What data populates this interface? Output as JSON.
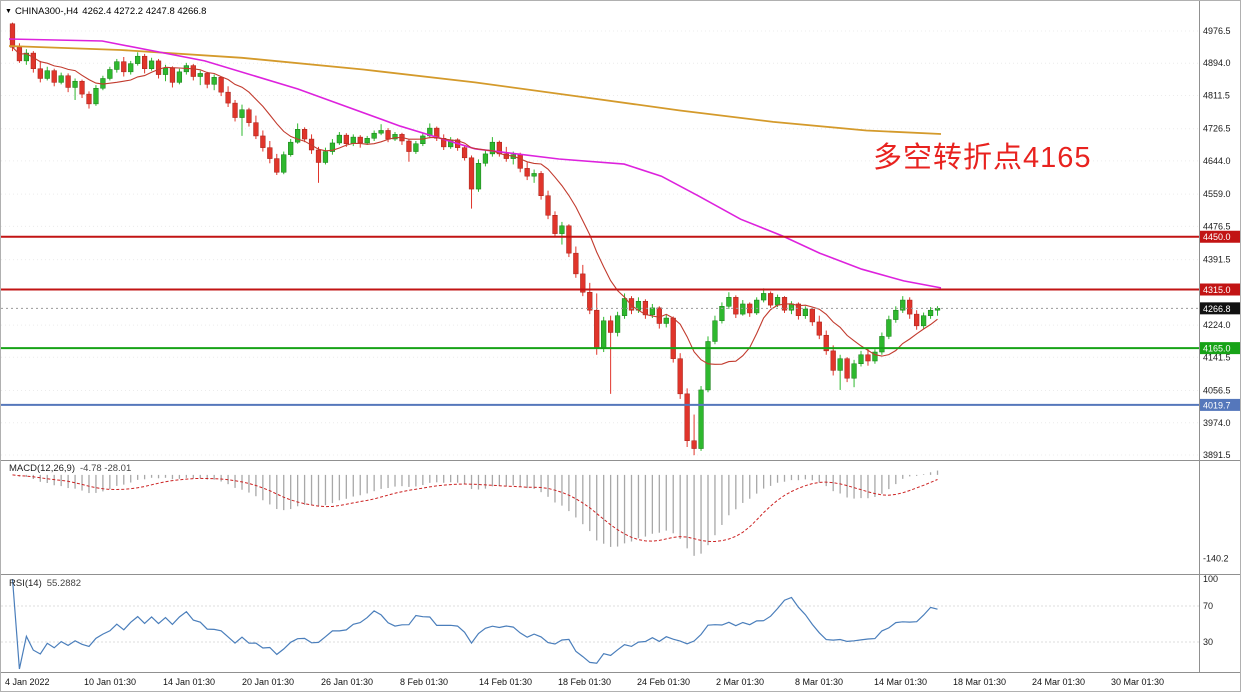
{
  "header": {
    "symbol": "CHINA300-,H4",
    "ohlc": "4262.4 4272.2 4247.8 4266.8"
  },
  "annotation": {
    "text": "多空转折点4165",
    "color": "#e8221f"
  },
  "indicators": {
    "macd": {
      "label": "MACD(12,26,9)",
      "values": "-4.78 -28.01",
      "axis_min_label": "-140.2"
    },
    "rsi": {
      "label": "RSI(14)",
      "value": "55.2882",
      "ticks": [
        "100",
        "70",
        "30"
      ]
    }
  },
  "price_axis": {
    "ticks": [
      "4976.5",
      "4894.0",
      "4811.5",
      "4726.5",
      "4644.0",
      "4559.0",
      "4476.5",
      "4391.5",
      "4224.0",
      "4141.5",
      "4056.5",
      "3974.0",
      "3891.5"
    ]
  },
  "time_axis": {
    "labels": [
      "4 Jan 2022",
      "10 Jan 01:30",
      "14 Jan 01:30",
      "20 Jan 01:30",
      "26 Jan 01:30",
      "8 Feb 01:30",
      "14 Feb 01:30",
      "18 Feb 01:30",
      "24 Feb 01:30",
      "2 Mar 01:30",
      "8 Mar 01:30",
      "14 Mar 01:30",
      "18 Mar 01:30",
      "24 Mar 01:30",
      "30 Mar 01:30"
    ]
  },
  "chart_data": {
    "type": "candlestick",
    "symbol": "CHINA300-",
    "timeframe": "H4",
    "price_range": [
      3891.5,
      4976.5
    ],
    "current_price": 4266.8,
    "current_price_label": "4266.8",
    "colors": {
      "up": "#2eb82e",
      "up_border": "#157a15",
      "down": "#e0352b",
      "down_border": "#a31f16",
      "ma_fast": "#c23b2e",
      "ma_mid": "#dd22dd",
      "ma_slow": "#d49a2b",
      "macd_hist": "#a8a8a8",
      "macd_signal": "#cc2222",
      "rsi": "#4a7ebb",
      "grid": "#ececec",
      "current": "#9a9a9a"
    },
    "levels": [
      {
        "price": 4450.0,
        "label": "4450.0",
        "color": "#c21414"
      },
      {
        "price": 4315.0,
        "label": "4315.0",
        "color": "#c21414"
      },
      {
        "price": 4165.0,
        "label": "4165.0",
        "color": "#17a317"
      },
      {
        "price": 4019.7,
        "label": "4019.7",
        "color": "#5577bb"
      }
    ],
    "overlays": {
      "ma_fast": {
        "period": 10
      },
      "ma_mid": {
        "points": [
          [
            0,
            4956
          ],
          [
            0.1,
            4951
          ],
          [
            0.21,
            4900
          ],
          [
            0.31,
            4828
          ],
          [
            0.42,
            4733
          ],
          [
            0.5,
            4675
          ],
          [
            0.59,
            4649
          ],
          [
            0.66,
            4636
          ],
          [
            0.7,
            4605
          ],
          [
            0.74,
            4554
          ],
          [
            0.785,
            4495
          ],
          [
            0.83,
            4452
          ],
          [
            0.87,
            4408
          ],
          [
            0.915,
            4367
          ],
          [
            0.96,
            4337
          ],
          [
            1.0,
            4319
          ]
        ]
      },
      "ma_slow": {
        "points": [
          [
            0,
            4938
          ],
          [
            0.12,
            4928
          ],
          [
            0.25,
            4908
          ],
          [
            0.38,
            4878
          ],
          [
            0.5,
            4845
          ],
          [
            0.62,
            4806
          ],
          [
            0.72,
            4773
          ],
          [
            0.82,
            4744
          ],
          [
            0.92,
            4722
          ],
          [
            1.0,
            4713
          ]
        ]
      }
    },
    "macd": {
      "fast": 12,
      "slow": 26,
      "signal": 9,
      "ylim": [
        -165,
        20
      ]
    },
    "rsi": {
      "period": 14,
      "levels": [
        70,
        30
      ],
      "ylim": [
        0,
        100
      ]
    },
    "candles": [
      [
        4995,
        4998,
        4925,
        4935
      ],
      [
        4935,
        4945,
        4895,
        4900
      ],
      [
        4900,
        4930,
        4890,
        4920
      ],
      [
        4920,
        4925,
        4870,
        4880
      ],
      [
        4880,
        4900,
        4845,
        4855
      ],
      [
        4855,
        4885,
        4850,
        4875
      ],
      [
        4875,
        4880,
        4835,
        4845
      ],
      [
        4845,
        4870,
        4840,
        4862
      ],
      [
        4862,
        4868,
        4820,
        4832
      ],
      [
        4832,
        4855,
        4800,
        4848
      ],
      [
        4848,
        4852,
        4805,
        4815
      ],
      [
        4815,
        4822,
        4778,
        4790
      ],
      [
        4790,
        4838,
        4785,
        4830
      ],
      [
        4830,
        4862,
        4825,
        4855
      ],
      [
        4855,
        4885,
        4850,
        4878
      ],
      [
        4878,
        4905,
        4870,
        4898
      ],
      [
        4898,
        4910,
        4860,
        4872
      ],
      [
        4872,
        4900,
        4865,
        4893
      ],
      [
        4893,
        4922,
        4888,
        4912
      ],
      [
        4912,
        4918,
        4868,
        4880
      ],
      [
        4880,
        4908,
        4875,
        4900
      ],
      [
        4900,
        4905,
        4855,
        4865
      ],
      [
        4865,
        4890,
        4848,
        4882
      ],
      [
        4882,
        4886,
        4832,
        4845
      ],
      [
        4845,
        4880,
        4840,
        4872
      ],
      [
        4872,
        4895,
        4865,
        4888
      ],
      [
        4888,
        4892,
        4850,
        4860
      ],
      [
        4860,
        4875,
        4838,
        4868
      ],
      [
        4868,
        4872,
        4830,
        4840
      ],
      [
        4840,
        4865,
        4825,
        4858
      ],
      [
        4858,
        4860,
        4810,
        4820
      ],
      [
        4820,
        4835,
        4782,
        4792
      ],
      [
        4792,
        4800,
        4745,
        4755
      ],
      [
        4755,
        4788,
        4708,
        4775
      ],
      [
        4775,
        4780,
        4732,
        4742
      ],
      [
        4742,
        4760,
        4700,
        4708
      ],
      [
        4708,
        4722,
        4668,
        4678
      ],
      [
        4678,
        4695,
        4638,
        4650
      ],
      [
        4650,
        4662,
        4608,
        4615
      ],
      [
        4615,
        4668,
        4610,
        4660
      ],
      [
        4660,
        4700,
        4655,
        4692
      ],
      [
        4692,
        4740,
        4688,
        4725
      ],
      [
        4725,
        4730,
        4692,
        4700
      ],
      [
        4700,
        4712,
        4662,
        4672
      ],
      [
        4672,
        4680,
        4588,
        4640
      ],
      [
        4640,
        4678,
        4635,
        4668
      ],
      [
        4668,
        4700,
        4660,
        4690
      ],
      [
        4690,
        4718,
        4685,
        4710
      ],
      [
        4710,
        4715,
        4680,
        4688
      ],
      [
        4688,
        4712,
        4682,
        4705
      ],
      [
        4705,
        4710,
        4678,
        4690
      ],
      [
        4690,
        4708,
        4685,
        4702
      ],
      [
        4702,
        4722,
        4695,
        4715
      ],
      [
        4715,
        4738,
        4710,
        4722
      ],
      [
        4722,
        4728,
        4692,
        4700
      ],
      [
        4700,
        4718,
        4695,
        4712
      ],
      [
        4712,
        4716,
        4685,
        4695
      ],
      [
        4695,
        4700,
        4642,
        4668
      ],
      [
        4668,
        4695,
        4662,
        4688
      ],
      [
        4688,
        4715,
        4682,
        4708
      ],
      [
        4708,
        4740,
        4702,
        4728
      ],
      [
        4728,
        4732,
        4695,
        4702
      ],
      [
        4702,
        4712,
        4672,
        4680
      ],
      [
        4680,
        4705,
        4675,
        4698
      ],
      [
        4698,
        4702,
        4670,
        4678
      ],
      [
        4678,
        4685,
        4645,
        4652
      ],
      [
        4652,
        4658,
        4522,
        4572
      ],
      [
        4572,
        4648,
        4565,
        4638
      ],
      [
        4638,
        4672,
        4630,
        4662
      ],
      [
        4662,
        4705,
        4655,
        4692
      ],
      [
        4692,
        4696,
        4655,
        4662
      ],
      [
        4662,
        4680,
        4642,
        4650
      ],
      [
        4650,
        4668,
        4635,
        4660
      ],
      [
        4660,
        4665,
        4615,
        4625
      ],
      [
        4625,
        4640,
        4595,
        4605
      ],
      [
        4605,
        4622,
        4588,
        4612
      ],
      [
        4612,
        4618,
        4545,
        4555
      ],
      [
        4555,
        4568,
        4495,
        4505
      ],
      [
        4505,
        4515,
        4448,
        4458
      ],
      [
        4458,
        4488,
        4430,
        4478
      ],
      [
        4478,
        4482,
        4398,
        4408
      ],
      [
        4408,
        4425,
        4345,
        4355
      ],
      [
        4355,
        4378,
        4298,
        4308
      ],
      [
        4308,
        4332,
        4252,
        4262
      ],
      [
        4262,
        4305,
        4148,
        4165
      ],
      [
        4165,
        4245,
        4155,
        4235
      ],
      [
        4235,
        4248,
        4048,
        4205
      ],
      [
        4205,
        4258,
        4195,
        4248
      ],
      [
        4248,
        4305,
        4240,
        4292
      ],
      [
        4292,
        4298,
        4252,
        4262
      ],
      [
        4262,
        4295,
        4255,
        4285
      ],
      [
        4285,
        4290,
        4240,
        4250
      ],
      [
        4250,
        4278,
        4242,
        4268
      ],
      [
        4268,
        4272,
        4215,
        4228
      ],
      [
        4228,
        4252,
        4218,
        4242
      ],
      [
        4242,
        4246,
        4128,
        4138
      ],
      [
        4138,
        4152,
        4035,
        4048
      ],
      [
        4048,
        4062,
        3912,
        3928
      ],
      [
        3928,
        3995,
        3891,
        3908
      ],
      [
        3908,
        4068,
        3902,
        4058
      ],
      [
        4058,
        4195,
        4052,
        4182
      ],
      [
        4182,
        4248,
        4175,
        4235
      ],
      [
        4235,
        4282,
        4228,
        4272
      ],
      [
        4272,
        4308,
        4265,
        4295
      ],
      [
        4295,
        4300,
        4242,
        4252
      ],
      [
        4252,
        4288,
        4248,
        4278
      ],
      [
        4278,
        4282,
        4245,
        4255
      ],
      [
        4255,
        4295,
        4250,
        4288
      ],
      [
        4288,
        4318,
        4282,
        4305
      ],
      [
        4305,
        4310,
        4268,
        4275
      ],
      [
        4275,
        4302,
        4270,
        4295
      ],
      [
        4295,
        4298,
        4255,
        4262
      ],
      [
        4262,
        4285,
        4252,
        4278
      ],
      [
        4278,
        4282,
        4238,
        4248
      ],
      [
        4248,
        4272,
        4240,
        4265
      ],
      [
        4265,
        4268,
        4222,
        4232
      ],
      [
        4232,
        4248,
        4188,
        4198
      ],
      [
        4198,
        4210,
        4148,
        4158
      ],
      [
        4158,
        4172,
        4095,
        4108
      ],
      [
        4108,
        4148,
        4058,
        4138
      ],
      [
        4138,
        4142,
        4078,
        4088
      ],
      [
        4088,
        4135,
        4065,
        4125
      ],
      [
        4125,
        4158,
        4118,
        4148
      ],
      [
        4148,
        4165,
        4120,
        4132
      ],
      [
        4132,
        4162,
        4125,
        4155
      ],
      [
        4155,
        4205,
        4148,
        4195
      ],
      [
        4195,
        4248,
        4188,
        4238
      ],
      [
        4238,
        4272,
        4230,
        4262
      ],
      [
        4262,
        4298,
        4255,
        4288
      ],
      [
        4288,
        4295,
        4240,
        4252
      ],
      [
        4252,
        4262,
        4212,
        4222
      ],
      [
        4222,
        4256,
        4215,
        4248
      ],
      [
        4248,
        4270,
        4240,
        4262
      ],
      [
        4262,
        4272.2,
        4247.8,
        4266.8
      ]
    ]
  }
}
